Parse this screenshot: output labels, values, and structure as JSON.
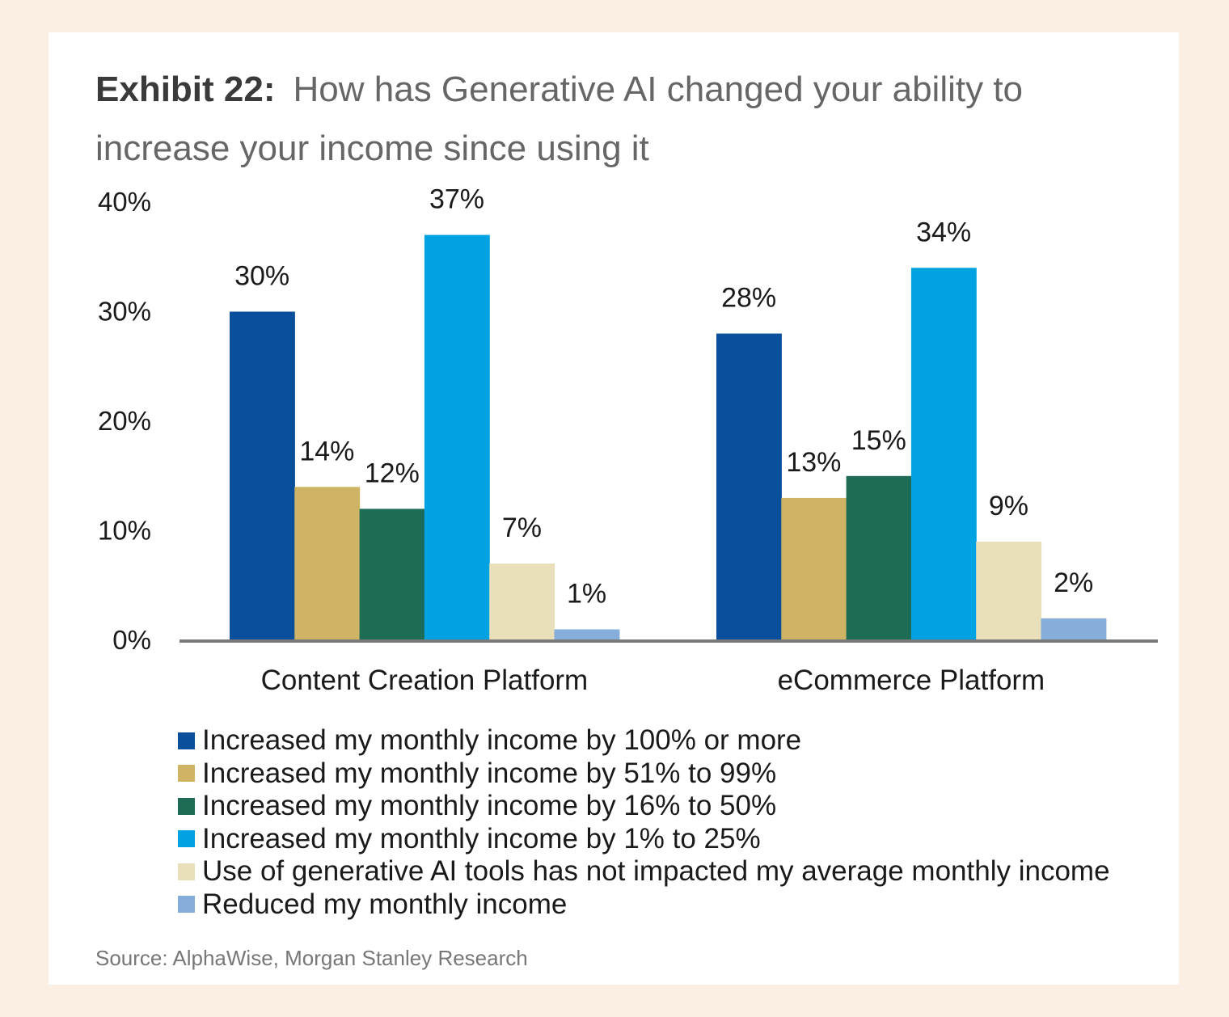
{
  "title": {
    "lead": "Exhibit 22:",
    "text": "How has Generative AI changed your ability to increase your income since using it"
  },
  "source": "Source: AlphaWise, Morgan Stanley Research",
  "chart_data": {
    "type": "bar",
    "title": "Exhibit 22: How has Generative AI changed your ability to increase your income since using it",
    "xlabel": "",
    "ylabel": "",
    "ylim": [
      0,
      40
    ],
    "yticks": [
      0,
      10,
      20,
      30,
      40
    ],
    "ytick_labels": [
      "0%",
      "10%",
      "20%",
      "30%",
      "40%"
    ],
    "grid": false,
    "legend_position": "bottom",
    "categories": [
      "Content Creation Platform",
      "eCommerce Platform"
    ],
    "series": [
      {
        "name": "Increased my monthly income by 100% or more",
        "color": "#0a4f9c",
        "values": [
          30,
          28
        ]
      },
      {
        "name": "Increased my monthly income by 51% to 99%",
        "color": "#d0b466",
        "values": [
          14,
          13
        ]
      },
      {
        "name": "Increased my monthly income by 16% to 50%",
        "color": "#1e6b56",
        "values": [
          12,
          15
        ]
      },
      {
        "name": "Increased my monthly income by 1% to 25%",
        "color": "#00a2e1",
        "values": [
          37,
          34
        ]
      },
      {
        "name": "Use of generative AI tools has not impacted my average monthly income",
        "color": "#e9dfbb",
        "values": [
          7,
          9
        ]
      },
      {
        "name": "Reduced my monthly income",
        "color": "#86aedb",
        "values": [
          1,
          2
        ]
      }
    ]
  }
}
